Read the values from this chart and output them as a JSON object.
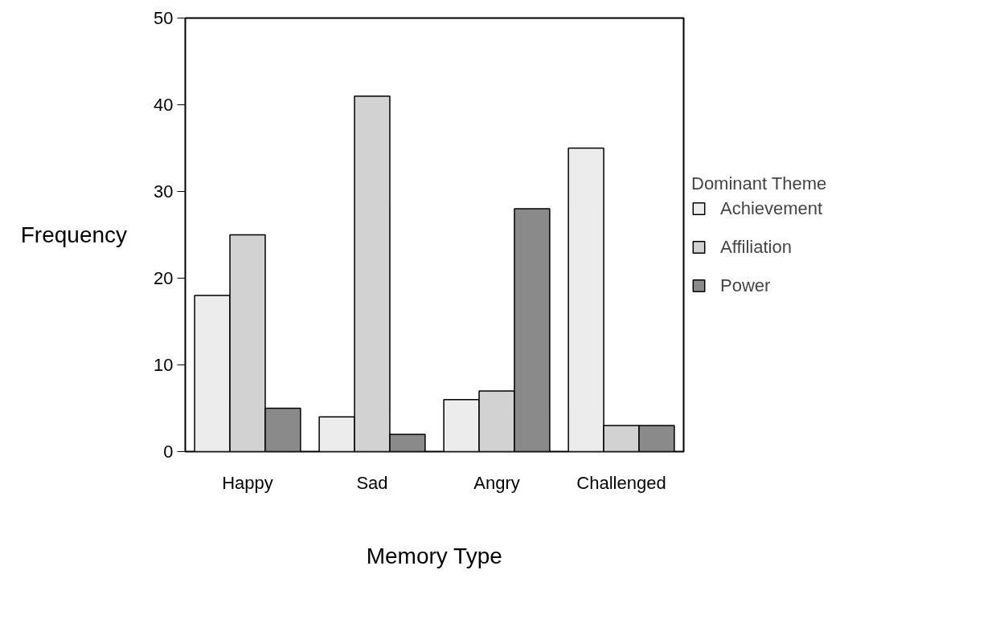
{
  "chart_data": {
    "type": "bar",
    "xlabel": "Memory Type",
    "ylabel": "Frequency",
    "legend_title": "Dominant Theme",
    "categories": [
      "Happy",
      "Sad",
      "Angry",
      "Challenged"
    ],
    "series": [
      {
        "name": "Achievement",
        "color": "#ececec",
        "values": [
          18,
          4,
          6,
          35
        ]
      },
      {
        "name": "Affiliation",
        "color": "#d2d2d2",
        "values": [
          25,
          41,
          7,
          3
        ]
      },
      {
        "name": "Power",
        "color": "#8a8a8a",
        "values": [
          5,
          2,
          28,
          3
        ]
      }
    ],
    "ylim": [
      0,
      50
    ],
    "yticks": [
      0,
      10,
      20,
      30,
      40,
      50
    ],
    "grid": false,
    "legend": "right"
  }
}
